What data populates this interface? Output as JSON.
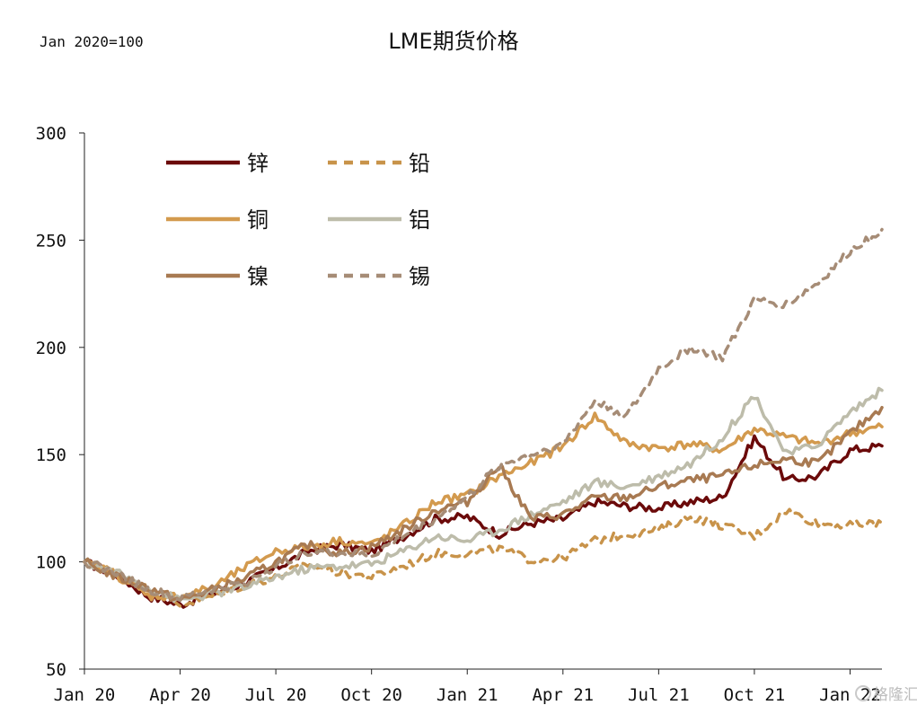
{
  "chart_data": {
    "type": "line",
    "title": "LME期货价格",
    "subtitle": "Jan 2020=100",
    "xlabel": "",
    "ylabel": "",
    "x_ticks": [
      "Jan 20",
      "Apr 20",
      "Jul 20",
      "Oct 20",
      "Jan 21",
      "Apr 21",
      "Jul 21",
      "Oct 21",
      "Jan 22"
    ],
    "y_ticks": [
      300,
      250,
      200,
      150,
      100,
      50
    ],
    "ylim": [
      50,
      300
    ],
    "xlim": [
      "2020-01",
      "2022-02"
    ],
    "grid": false,
    "legend_position": "top-left",
    "watermark": "格隆汇",
    "series": [
      {
        "name": "锌",
        "color": "#6b0a0a",
        "dash": "solid",
        "x": [
          "2020-01",
          "2020-02",
          "2020-03",
          "2020-04",
          "2020-05",
          "2020-06",
          "2020-07",
          "2020-08",
          "2020-09",
          "2020-10",
          "2020-11",
          "2020-12",
          "2021-01",
          "2021-02",
          "2021-03",
          "2021-04",
          "2021-05",
          "2021-06",
          "2021-07",
          "2021-08",
          "2021-09",
          "2021-10",
          "2021-11",
          "2021-12",
          "2022-01",
          "2022-02"
        ],
        "values": [
          100,
          94,
          84,
          80,
          85,
          90,
          97,
          105,
          108,
          105,
          112,
          120,
          121,
          113,
          118,
          120,
          128,
          126,
          125,
          128,
          130,
          158,
          138,
          140,
          152,
          154
        ]
      },
      {
        "name": "铅",
        "color": "#c8934a",
        "dash": "dashed",
        "x": [
          "2020-01",
          "2020-02",
          "2020-03",
          "2020-04",
          "2020-05",
          "2020-06",
          "2020-07",
          "2020-08",
          "2020-09",
          "2020-10",
          "2020-11",
          "2020-12",
          "2021-01",
          "2021-02",
          "2021-03",
          "2021-04",
          "2021-05",
          "2021-06",
          "2021-07",
          "2021-08",
          "2021-09",
          "2021-10",
          "2021-11",
          "2021-12",
          "2022-01",
          "2022-02"
        ],
        "values": [
          100,
          95,
          87,
          80,
          84,
          89,
          93,
          99,
          95,
          93,
          98,
          104,
          104,
          106,
          101,
          102,
          110,
          113,
          115,
          121,
          117,
          112,
          124,
          118,
          117,
          118
        ]
      },
      {
        "name": "铜",
        "color": "#d39a4e",
        "dash": "solid",
        "x": [
          "2020-01",
          "2020-02",
          "2020-03",
          "2020-04",
          "2020-05",
          "2020-06",
          "2020-07",
          "2020-08",
          "2020-09",
          "2020-10",
          "2020-11",
          "2020-12",
          "2021-01",
          "2021-02",
          "2021-03",
          "2021-04",
          "2021-05",
          "2021-06",
          "2021-07",
          "2021-08",
          "2021-09",
          "2021-10",
          "2021-11",
          "2021-12",
          "2022-01",
          "2022-02"
        ],
        "values": [
          100,
          94,
          84,
          84,
          88,
          97,
          105,
          107,
          110,
          108,
          117,
          128,
          131,
          140,
          146,
          154,
          168,
          155,
          153,
          155,
          152,
          162,
          158,
          155,
          160,
          163
        ]
      },
      {
        "name": "铝",
        "color": "#bdbcaa",
        "dash": "solid",
        "x": [
          "2020-01",
          "2020-02",
          "2020-03",
          "2020-04",
          "2020-05",
          "2020-06",
          "2020-07",
          "2020-08",
          "2020-09",
          "2020-10",
          "2020-11",
          "2020-12",
          "2021-01",
          "2021-02",
          "2021-03",
          "2021-04",
          "2021-05",
          "2021-06",
          "2021-07",
          "2021-08",
          "2021-09",
          "2021-10",
          "2021-11",
          "2021-12",
          "2022-01",
          "2022-02"
        ],
        "values": [
          100,
          95,
          88,
          82,
          85,
          88,
          93,
          97,
          98,
          99,
          105,
          112,
          110,
          115,
          122,
          128,
          137,
          135,
          140,
          146,
          158,
          178,
          150,
          155,
          170,
          180
        ]
      },
      {
        "name": "镍",
        "color": "#a87a52",
        "dash": "solid",
        "x": [
          "2020-01",
          "2020-02",
          "2020-03",
          "2020-04",
          "2020-05",
          "2020-06",
          "2020-07",
          "2020-08",
          "2020-09",
          "2020-10",
          "2020-11",
          "2020-12",
          "2021-01",
          "2021-02",
          "2021-03",
          "2021-04",
          "2021-05",
          "2021-06",
          "2021-07",
          "2021-08",
          "2021-09",
          "2021-10",
          "2021-11",
          "2021-12",
          "2022-01",
          "2022-02"
        ],
        "values": [
          100,
          93,
          88,
          82,
          87,
          92,
          100,
          108,
          104,
          107,
          115,
          124,
          128,
          145,
          120,
          122,
          130,
          130,
          135,
          138,
          140,
          145,
          148,
          146,
          160,
          172
        ]
      },
      {
        "name": "锡",
        "color": "#a68c76",
        "dash": "dashed",
        "x": [
          "2020-01",
          "2020-02",
          "2020-03",
          "2020-04",
          "2020-05",
          "2020-06",
          "2020-07",
          "2020-08",
          "2020-09",
          "2020-10",
          "2020-11",
          "2020-12",
          "2021-01",
          "2021-02",
          "2021-03",
          "2021-04",
          "2021-05",
          "2021-06",
          "2021-07",
          "2021-08",
          "2021-09",
          "2021-10",
          "2021-11",
          "2021-12",
          "2022-01",
          "2022-02"
        ],
        "values": [
          100,
          95,
          87,
          83,
          87,
          90,
          98,
          105,
          104,
          103,
          112,
          120,
          130,
          145,
          150,
          155,
          175,
          168,
          190,
          200,
          195,
          222,
          220,
          230,
          245,
          255
        ]
      }
    ]
  }
}
